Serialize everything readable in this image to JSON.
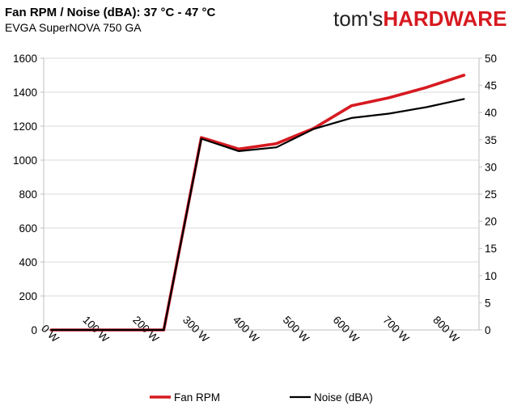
{
  "header": {
    "title": "Fan RPM / Noise (dBA): 37 °C - 47 °C",
    "subtitle": "EVGA SuperNOVA 750 GA"
  },
  "logo": {
    "text_a": "tom's",
    "text_b": "HARDWARE",
    "color_b": "#d71920"
  },
  "chart_data": {
    "type": "line",
    "title": "Fan RPM / Noise (dBA): 37 °C - 47 °C",
    "subtitle": "EVGA SuperNOVA 750 GA",
    "x_tick_labels": [
      "0 W",
      "100 W",
      "200 W",
      "300 W",
      "400 W",
      "500 W",
      "600 W",
      "700 W",
      "800 W"
    ],
    "x_ticks": [
      0,
      100,
      200,
      300,
      400,
      500,
      600,
      700,
      800
    ],
    "x": [
      0,
      225,
      300,
      375,
      450,
      525,
      600,
      675,
      750,
      825
    ],
    "xlim": [
      -15,
      855
    ],
    "y_left_lim": [
      0,
      1600
    ],
    "y_left_ticks": [
      0,
      200,
      400,
      600,
      800,
      1000,
      1200,
      1400,
      1600
    ],
    "y_right_lim": [
      0,
      50
    ],
    "y_right_ticks": [
      0,
      5,
      10,
      15,
      20,
      25,
      30,
      35,
      40,
      45,
      50
    ],
    "grid": "horizontal",
    "legend_position": "bottom",
    "series": [
      {
        "name": "Fan RPM",
        "axis": "left",
        "color": "#d71920",
        "values": [
          0,
          0,
          1133,
          1065,
          1097,
          1187,
          1320,
          1367,
          1428,
          1500
        ]
      },
      {
        "name": "Noise (dBA)",
        "axis": "right",
        "color": "#000000",
        "values": [
          0,
          0,
          35.2,
          32.9,
          33.6,
          37.0,
          39.0,
          39.8,
          41.0,
          42.5
        ]
      }
    ]
  }
}
